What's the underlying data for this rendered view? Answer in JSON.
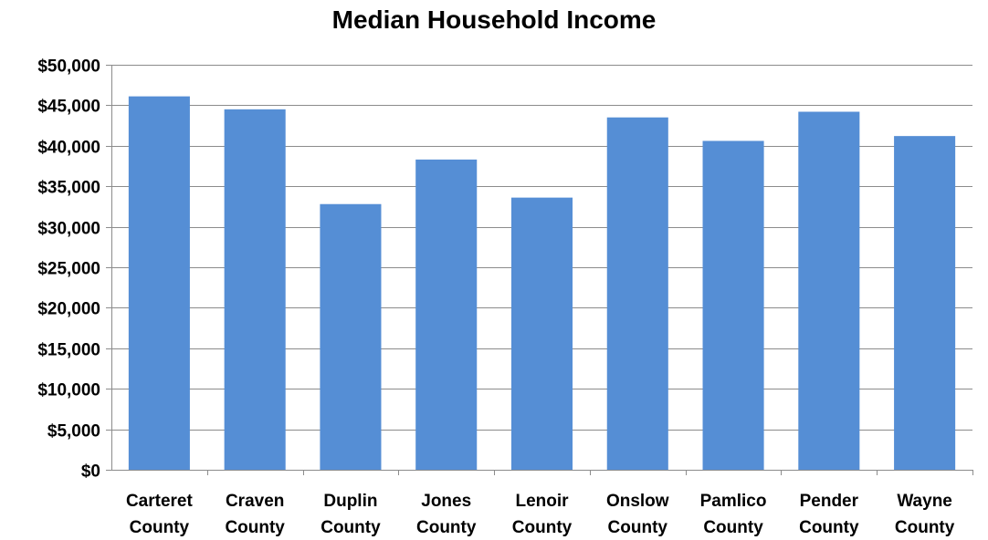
{
  "chart_data": {
    "type": "bar",
    "title": "Median Household Income",
    "xlabel": "",
    "ylabel": "",
    "ylim": [
      0,
      50000
    ],
    "grid": true,
    "legend": "none",
    "bar_color": "#558ED5",
    "y_ticks": [
      0,
      5000,
      10000,
      15000,
      20000,
      25000,
      30000,
      35000,
      40000,
      45000,
      50000
    ],
    "y_tick_labels": [
      "$0",
      "$5,000",
      "$10,000",
      "$15,000",
      "$20,000",
      "$25,000",
      "$30,000",
      "$35,000",
      "$40,000",
      "$45,000",
      "$50,000"
    ],
    "categories": [
      [
        "Carteret",
        "County"
      ],
      [
        "Craven",
        "County"
      ],
      [
        "Duplin",
        "County"
      ],
      [
        "Jones",
        "County"
      ],
      [
        "Lenoir",
        "County"
      ],
      [
        "Onslow",
        "County"
      ],
      [
        "Pamlico",
        "County"
      ],
      [
        "Pender",
        "County"
      ],
      [
        "Wayne",
        "County"
      ]
    ],
    "values": [
      46100,
      44500,
      32800,
      38300,
      33600,
      43500,
      40600,
      44200,
      41200
    ]
  }
}
